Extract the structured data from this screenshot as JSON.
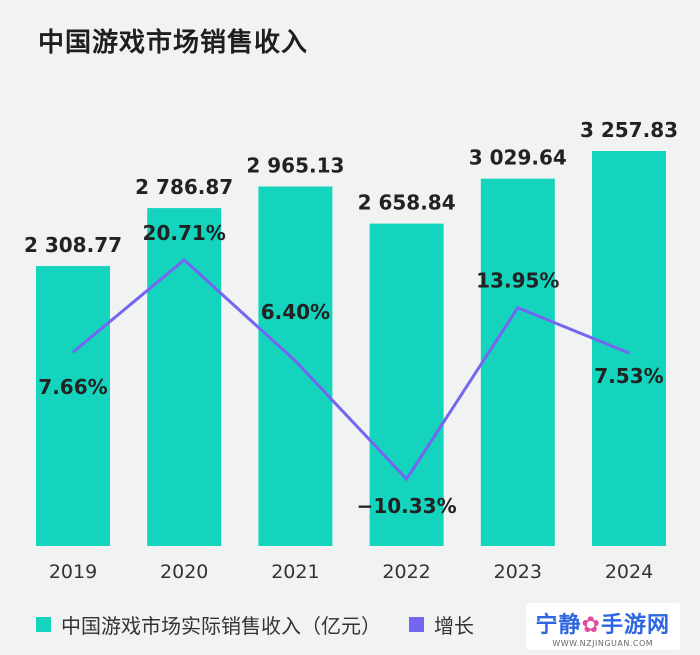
{
  "title": "中国游戏市场销售收入",
  "chart_data": {
    "type": "bar",
    "categories": [
      "2019",
      "2020",
      "2021",
      "2022",
      "2023",
      "2024"
    ],
    "series": [
      {
        "name": "中国游戏市场实际销售收入（亿元）",
        "type": "bar",
        "values": [
          2308.77,
          2786.87,
          2965.13,
          2658.84,
          3029.64,
          3257.83
        ],
        "labels": [
          "2 308.77",
          "2 786.87",
          "2 965.13",
          "2 658.84",
          "3 029.64",
          "3 257.83"
        ],
        "color": "#14d4be"
      },
      {
        "name": "增长",
        "type": "line",
        "values": [
          7.66,
          20.71,
          6.4,
          -10.33,
          13.95,
          7.53
        ],
        "labels": [
          "7.66%",
          "20.71%",
          "6.40%",
          "−10.33%",
          "13.95%",
          "7.53%"
        ],
        "color": "#7466f0"
      }
    ],
    "grid": false,
    "legend_position": "bottom"
  },
  "watermark": {
    "main_left": "宁静",
    "logo": "✿",
    "main_right": "手游网",
    "sub": "WWW.NZJINGUAN.COM"
  }
}
